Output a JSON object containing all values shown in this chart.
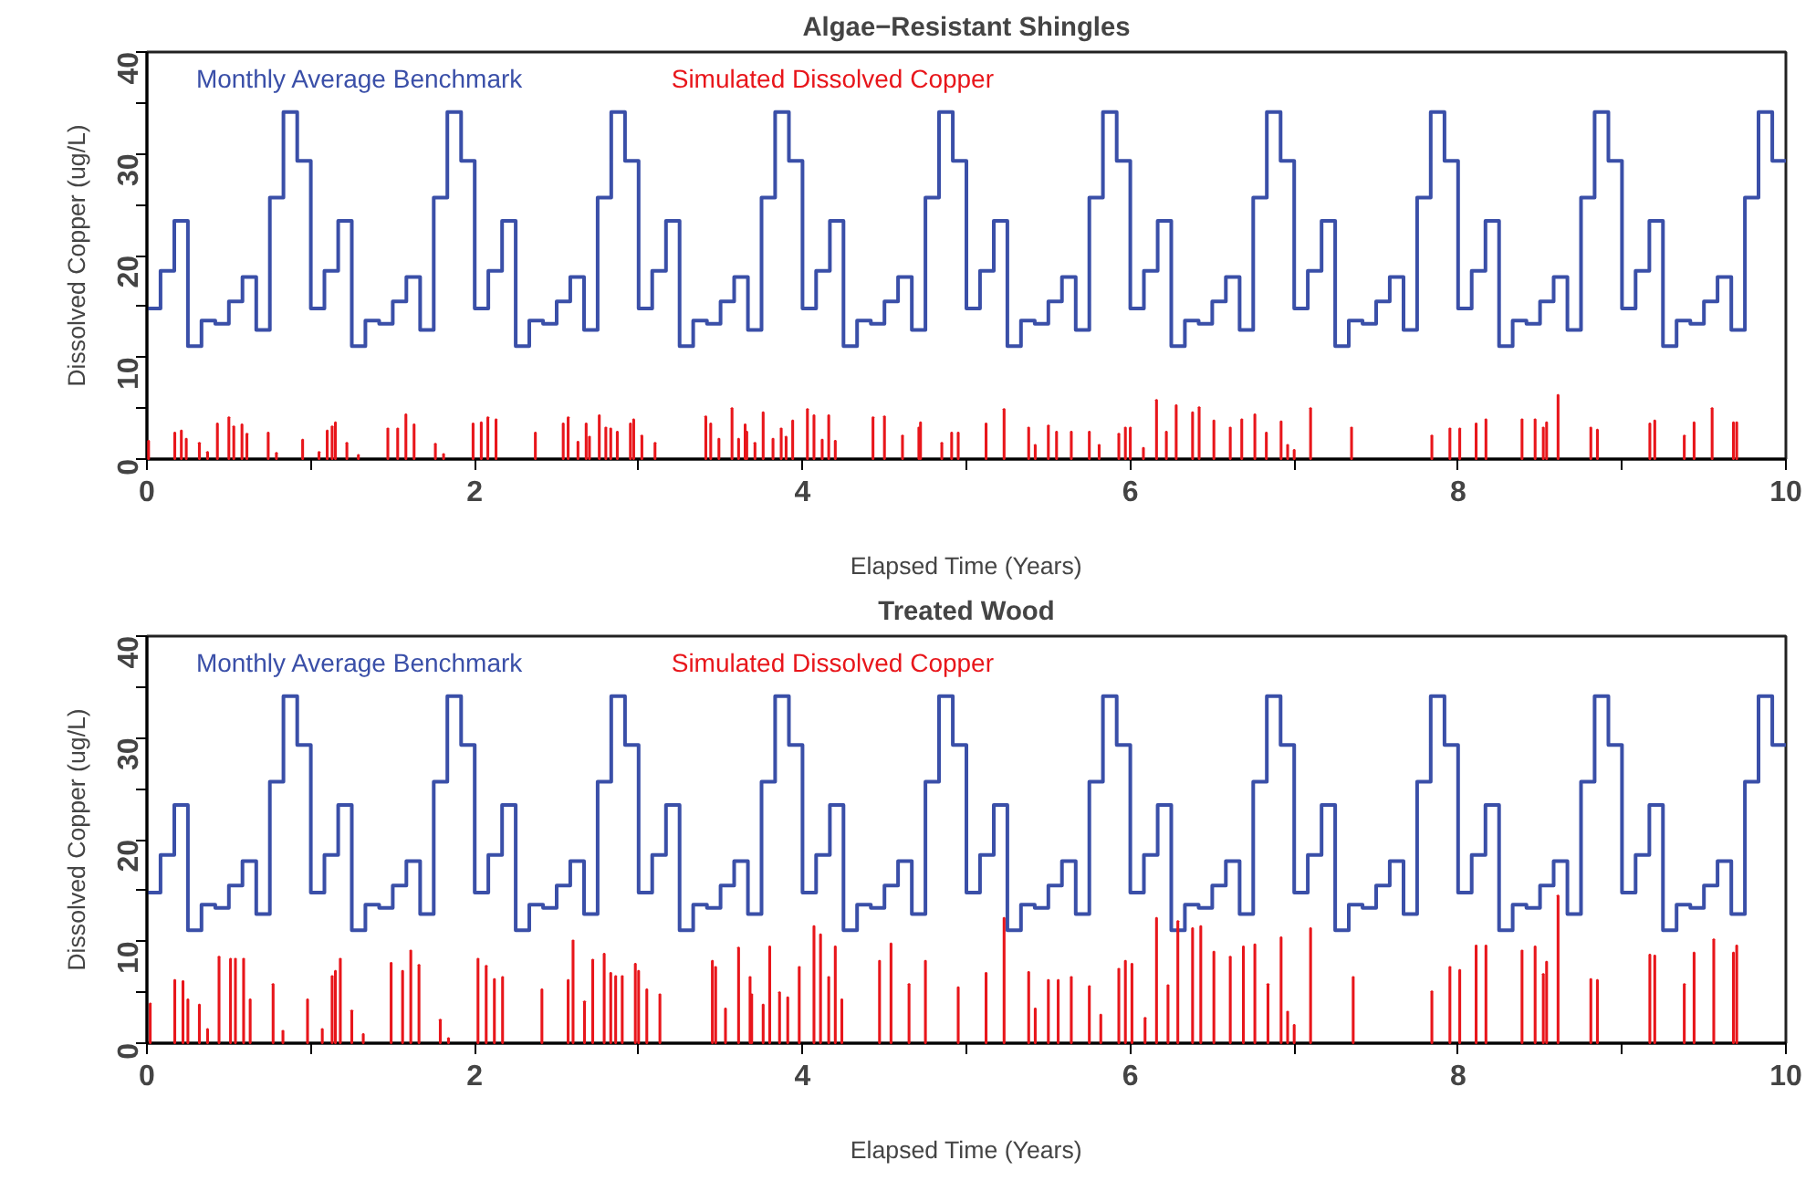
{
  "chart_data": [
    {
      "type": "step",
      "title": "Algae−Resistant Shingles",
      "xlabel": "Elapsed Time (Years)",
      "ylabel": "Dissolved Copper (ug/L)",
      "xlim": [
        0,
        10
      ],
      "ylim": [
        0,
        40
      ],
      "xticks": [
        0,
        {
          "value": 1,
          "label": null
        },
        2,
        {
          "value": 3,
          "label": null
        },
        4,
        {
          "value": 5,
          "label": null
        },
        6,
        {
          "value": 7,
          "label": null
        },
        8,
        {
          "value": 9,
          "label": null
        },
        10
      ],
      "yticks": [
        0,
        {
          "value": 5,
          "label": null
        },
        10,
        {
          "value": 15,
          "label": null
        },
        20,
        {
          "value": 25,
          "label": null
        },
        30,
        {
          "value": 35,
          "label": null
        },
        40
      ],
      "legend": "top left",
      "grid": false,
      "series": [
        {
          "name": "Monthly Average Benchmark",
          "color": "#3a4fa8",
          "x": [
            0,
            0.083,
            0.167,
            0.25,
            0.333,
            0.417,
            0.5,
            0.583,
            0.667,
            0.75,
            0.833,
            0.917,
            1,
            1.083,
            1.167,
            1.25,
            1.333,
            1.417,
            1.5,
            1.583,
            1.667,
            1.75,
            1.833,
            1.917,
            2,
            2.083,
            2.167,
            2.25,
            2.333,
            2.417,
            2.5,
            2.583,
            2.667,
            2.75,
            2.833,
            2.917,
            3,
            3.083,
            3.167,
            3.25,
            3.333,
            3.417,
            3.5,
            3.583,
            3.667,
            3.75,
            3.833,
            3.917,
            4,
            4.083,
            4.167,
            4.25,
            4.333,
            4.417,
            4.5,
            4.583,
            4.667,
            4.75,
            4.833,
            4.917,
            5,
            5.083,
            5.167,
            5.25,
            5.333,
            5.417,
            5.5,
            5.583,
            5.667,
            5.75,
            5.833,
            5.917,
            6,
            6.083,
            6.167,
            6.25,
            6.333,
            6.417,
            6.5,
            6.583,
            6.667,
            6.75,
            6.833,
            6.917,
            7,
            7.083,
            7.167,
            7.25,
            7.333,
            7.417,
            7.5,
            7.583,
            7.667,
            7.75,
            7.833,
            7.917,
            8,
            8.083,
            8.167,
            8.25,
            8.333,
            8.417,
            8.5,
            8.583,
            8.667,
            8.75,
            8.833,
            8.917,
            9,
            9.083,
            9.167,
            9.25,
            9.333,
            9.417,
            9.5,
            9.583,
            9.667,
            9.75,
            9.833,
            9.917,
            10
          ],
          "values": [
            14.8,
            18.5,
            23.4,
            11.1,
            13.6,
            13.3,
            15.5,
            17.9,
            12.7,
            25.7,
            34.1,
            29.3,
            14.8,
            18.5,
            23.4,
            11.1,
            13.6,
            13.3,
            15.5,
            17.9,
            12.7,
            25.7,
            34.1,
            29.3,
            14.8,
            18.5,
            23.4,
            11.1,
            13.6,
            13.3,
            15.5,
            17.9,
            12.7,
            25.7,
            34.1,
            29.3,
            14.8,
            18.5,
            23.4,
            11.1,
            13.6,
            13.3,
            15.5,
            17.9,
            12.7,
            25.7,
            34.1,
            29.3,
            14.8,
            18.5,
            23.4,
            11.1,
            13.6,
            13.3,
            15.5,
            17.9,
            12.7,
            25.7,
            34.1,
            29.3,
            14.8,
            18.5,
            23.4,
            11.1,
            13.6,
            13.3,
            15.5,
            17.9,
            12.7,
            25.7,
            34.1,
            29.3,
            14.8,
            18.5,
            23.4,
            11.1,
            13.6,
            13.3,
            15.5,
            17.9,
            12.7,
            25.7,
            34.1,
            29.3,
            14.8,
            18.5,
            23.4,
            11.1,
            13.6,
            13.3,
            15.5,
            17.9,
            12.7,
            25.7,
            34.1,
            29.3,
            14.8,
            18.5,
            23.4,
            11.1,
            13.6,
            13.3,
            15.5,
            17.9,
            12.7,
            25.7,
            34.1,
            29.3,
            14.8,
            18.5,
            23.4,
            11.1,
            13.6,
            13.3,
            15.5,
            17.9,
            12.7,
            25.7,
            34.1,
            29.3,
            29.3
          ]
        },
        {
          "name": "Simulated Dissolved Copper",
          "type": "bar",
          "color": "#e8161b",
          "x": [
            0.01,
            0.17,
            0.21,
            0.24,
            0.32,
            0.37,
            0.43,
            0.5,
            0.53,
            0.58,
            0.61,
            0.74,
            0.79,
            0.95,
            1.05,
            1.1,
            1.13,
            1.15,
            1.22,
            1.29,
            1.47,
            1.53,
            1.58,
            1.63,
            1.76,
            1.81,
            1.99,
            2.04,
            2.08,
            2.13,
            2.37,
            2.54,
            2.57,
            2.63,
            2.68,
            2.7,
            2.76,
            2.8,
            2.83,
            2.87,
            2.95,
            2.97,
            3.02,
            3.1,
            3.41,
            3.44,
            3.49,
            3.57,
            3.61,
            3.65,
            3.66,
            3.71,
            3.76,
            3.82,
            3.87,
            3.9,
            3.94,
            4.03,
            4.07,
            4.12,
            4.16,
            4.2,
            4.43,
            4.5,
            4.61,
            4.71,
            4.72,
            4.85,
            4.91,
            4.95,
            5.12,
            5.23,
            5.38,
            5.42,
            5.5,
            5.55,
            5.64,
            5.75,
            5.81,
            5.93,
            5.97,
            6.0,
            6.08,
            6.16,
            6.22,
            6.28,
            6.38,
            6.42,
            6.51,
            6.61,
            6.68,
            6.76,
            6.83,
            6.92,
            6.96,
            7.0,
            7.1,
            7.35,
            7.84,
            7.95,
            8.01,
            8.11,
            8.17,
            8.39,
            8.47,
            8.52,
            8.54,
            8.61,
            8.81,
            8.85,
            9.17,
            9.2,
            9.38,
            9.44,
            9.55,
            9.68,
            9.7
          ],
          "values": [
            1.8,
            2.6,
            2.8,
            2.0,
            1.6,
            0.7,
            3.5,
            4.1,
            3.2,
            3.4,
            2.5,
            2.6,
            0.6,
            1.9,
            0.7,
            2.8,
            3.2,
            3.6,
            1.6,
            0.4,
            3.0,
            3.0,
            4.4,
            3.4,
            1.5,
            0.5,
            3.5,
            3.6,
            4.1,
            3.9,
            2.6,
            3.5,
            4.1,
            1.7,
            3.5,
            2.2,
            4.3,
            3.1,
            3.0,
            2.7,
            3.5,
            3.9,
            2.3,
            1.6,
            4.2,
            3.5,
            2.0,
            5.0,
            2.0,
            3.4,
            2.7,
            1.6,
            4.6,
            2.0,
            3.0,
            2.2,
            3.8,
            4.9,
            4.3,
            1.9,
            4.3,
            1.8,
            4.1,
            4.2,
            2.3,
            3.1,
            3.6,
            1.6,
            2.6,
            2.6,
            3.5,
            4.9,
            3.1,
            1.4,
            3.3,
            2.7,
            2.7,
            2.7,
            1.4,
            2.5,
            3.1,
            3.1,
            1.1,
            5.8,
            2.7,
            5.3,
            4.6,
            5.1,
            3.8,
            3.1,
            3.9,
            4.4,
            2.6,
            3.7,
            1.4,
            0.9,
            5.0,
            3.1,
            2.3,
            3.0,
            3.0,
            3.5,
            3.9,
            3.9,
            3.9,
            3.1,
            3.6,
            6.3,
            3.1,
            2.9,
            3.5,
            3.8,
            2.3,
            3.6,
            5.0,
            3.6,
            3.6
          ]
        }
      ]
    },
    {
      "type": "step",
      "title": "Treated Wood",
      "xlabel": "Elapsed Time (Years)",
      "ylabel": "Dissolved Copper (ug/L)",
      "xlim": [
        0,
        10
      ],
      "ylim": [
        0,
        40
      ],
      "xticks": [
        0,
        {
          "value": 1,
          "label": null
        },
        2,
        {
          "value": 3,
          "label": null
        },
        4,
        {
          "value": 5,
          "label": null
        },
        6,
        {
          "value": 7,
          "label": null
        },
        8,
        {
          "value": 9,
          "label": null
        },
        10
      ],
      "yticks": [
        0,
        {
          "value": 5,
          "label": null
        },
        10,
        {
          "value": 15,
          "label": null
        },
        20,
        {
          "value": 25,
          "label": null
        },
        30,
        {
          "value": 35,
          "label": null
        },
        40
      ],
      "legend": "top left",
      "grid": false,
      "series": [
        {
          "name": "Monthly Average Benchmark",
          "color": "#3a4fa8",
          "x": [
            0,
            0.083,
            0.167,
            0.25,
            0.333,
            0.417,
            0.5,
            0.583,
            0.667,
            0.75,
            0.833,
            0.917,
            1,
            1.083,
            1.167,
            1.25,
            1.333,
            1.417,
            1.5,
            1.583,
            1.667,
            1.75,
            1.833,
            1.917,
            2,
            2.083,
            2.167,
            2.25,
            2.333,
            2.417,
            2.5,
            2.583,
            2.667,
            2.75,
            2.833,
            2.917,
            3,
            3.083,
            3.167,
            3.25,
            3.333,
            3.417,
            3.5,
            3.583,
            3.667,
            3.75,
            3.833,
            3.917,
            4,
            4.083,
            4.167,
            4.25,
            4.333,
            4.417,
            4.5,
            4.583,
            4.667,
            4.75,
            4.833,
            4.917,
            5,
            5.083,
            5.167,
            5.25,
            5.333,
            5.417,
            5.5,
            5.583,
            5.667,
            5.75,
            5.833,
            5.917,
            6,
            6.083,
            6.167,
            6.25,
            6.333,
            6.417,
            6.5,
            6.583,
            6.667,
            6.75,
            6.833,
            6.917,
            7,
            7.083,
            7.167,
            7.25,
            7.333,
            7.417,
            7.5,
            7.583,
            7.667,
            7.75,
            7.833,
            7.917,
            8,
            8.083,
            8.167,
            8.25,
            8.333,
            8.417,
            8.5,
            8.583,
            8.667,
            8.75,
            8.833,
            8.917,
            9,
            9.083,
            9.167,
            9.25,
            9.333,
            9.417,
            9.5,
            9.583,
            9.667,
            9.75,
            9.833,
            9.917,
            10
          ],
          "values": [
            14.8,
            18.5,
            23.4,
            11.1,
            13.6,
            13.3,
            15.5,
            17.9,
            12.7,
            25.7,
            34.1,
            29.3,
            14.8,
            18.5,
            23.4,
            11.1,
            13.6,
            13.3,
            15.5,
            17.9,
            12.7,
            25.7,
            34.1,
            29.3,
            14.8,
            18.5,
            23.4,
            11.1,
            13.6,
            13.3,
            15.5,
            17.9,
            12.7,
            25.7,
            34.1,
            29.3,
            14.8,
            18.5,
            23.4,
            11.1,
            13.6,
            13.3,
            15.5,
            17.9,
            12.7,
            25.7,
            34.1,
            29.3,
            14.8,
            18.5,
            23.4,
            11.1,
            13.6,
            13.3,
            15.5,
            17.9,
            12.7,
            25.7,
            34.1,
            29.3,
            14.8,
            18.5,
            23.4,
            11.1,
            13.6,
            13.3,
            15.5,
            17.9,
            12.7,
            25.7,
            34.1,
            29.3,
            14.8,
            18.5,
            23.4,
            11.1,
            13.6,
            13.3,
            15.5,
            17.9,
            12.7,
            25.7,
            34.1,
            29.3,
            14.8,
            18.5,
            23.4,
            11.1,
            13.6,
            13.3,
            15.5,
            17.9,
            12.7,
            25.7,
            34.1,
            29.3,
            14.8,
            18.5,
            23.4,
            11.1,
            13.6,
            13.3,
            15.5,
            17.9,
            12.7,
            25.7,
            34.1,
            29.3,
            14.8,
            18.5,
            23.4,
            11.1,
            13.6,
            13.3,
            15.5,
            17.9,
            12.7,
            25.7,
            34.1,
            29.3,
            29.3
          ]
        },
        {
          "name": "Simulated Dissolved Copper",
          "type": "bar",
          "color": "#e8161b",
          "x": [
            0.02,
            0.17,
            0.22,
            0.25,
            0.32,
            0.37,
            0.44,
            0.51,
            0.54,
            0.59,
            0.63,
            0.77,
            0.83,
            0.98,
            1.07,
            1.13,
            1.15,
            1.18,
            1.25,
            1.32,
            1.49,
            1.56,
            1.61,
            1.66,
            1.79,
            1.84,
            2.02,
            2.07,
            2.12,
            2.17,
            2.41,
            2.57,
            2.6,
            2.67,
            2.72,
            2.79,
            2.83,
            2.86,
            2.9,
            2.98,
            3.0,
            3.05,
            3.13,
            3.45,
            3.47,
            3.53,
            3.61,
            3.68,
            3.69,
            3.76,
            3.8,
            3.86,
            3.91,
            3.98,
            4.07,
            4.11,
            4.16,
            4.2,
            4.24,
            4.47,
            4.54,
            4.65,
            4.75,
            4.95,
            5.12,
            5.23,
            5.38,
            5.42,
            5.5,
            5.56,
            5.64,
            5.75,
            5.82,
            5.93,
            5.97,
            6.01,
            6.09,
            6.16,
            6.23,
            6.29,
            6.38,
            6.43,
            6.51,
            6.61,
            6.69,
            6.76,
            6.84,
            6.92,
            6.96,
            7.0,
            7.1,
            7.36,
            7.84,
            7.95,
            8.01,
            8.11,
            8.17,
            8.39,
            8.47,
            8.52,
            8.54,
            8.61,
            8.81,
            8.85,
            9.17,
            9.2,
            9.38,
            9.44,
            9.56,
            9.68,
            9.7
          ],
          "values": [
            3.9,
            6.2,
            6.1,
            4.3,
            3.8,
            1.4,
            8.5,
            8.3,
            8.3,
            8.3,
            4.3,
            5.8,
            1.2,
            4.3,
            1.4,
            6.6,
            7.1,
            8.3,
            3.2,
            0.9,
            7.9,
            7.1,
            9.1,
            7.7,
            2.3,
            0.5,
            8.3,
            7.6,
            6.3,
            6.5,
            5.3,
            6.2,
            10.1,
            4.1,
            8.2,
            8.8,
            6.9,
            6.6,
            6.6,
            7.8,
            7.1,
            5.3,
            4.8,
            8.1,
            7.5,
            3.4,
            9.4,
            6.5,
            4.8,
            3.8,
            9.5,
            5.0,
            4.5,
            7.5,
            11.5,
            10.7,
            6.5,
            9.5,
            4.3,
            8.1,
            9.8,
            5.8,
            8.1,
            5.5,
            6.9,
            12.3,
            7.0,
            3.4,
            6.2,
            6.2,
            6.5,
            5.6,
            2.8,
            7.3,
            8.1,
            7.8,
            2.5,
            12.3,
            5.7,
            12.0,
            11.3,
            11.5,
            9.0,
            8.5,
            9.5,
            9.7,
            5.8,
            10.4,
            3.1,
            1.8,
            11.3,
            6.5,
            5.1,
            7.5,
            7.2,
            9.6,
            9.6,
            9.1,
            9.5,
            6.8,
            8.0,
            14.5,
            6.3,
            6.2,
            8.7,
            8.6,
            5.8,
            8.9,
            10.2,
            8.9,
            9.6
          ]
        }
      ]
    }
  ]
}
